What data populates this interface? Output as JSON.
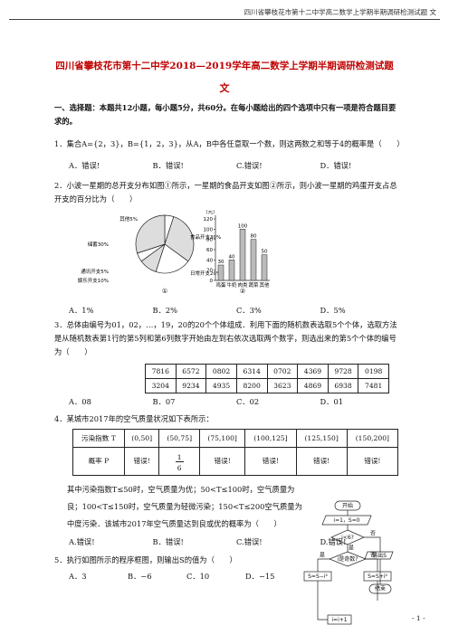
{
  "header": "四川省攀枝花市第十二中学高二数学上学期半期调研检测试题 文",
  "title": "四川省攀枝花市第十二中学2018—2019学年高二数学上学期半期调研检测试题",
  "subtitle": "文",
  "section": "一、选择题：本题共12小题，每小题5分，共60分。在每小题给出的四个选项中只有一项是符合题目要求的。",
  "q1": {
    "text": "1．集合A={2，3}，B={1，2，3}，从A，B中各任意取一个数，则这两数之和等于4的概率是（　　）",
    "options": [
      "A．错误!",
      "B．错误!",
      "C.错误!",
      "D．错误!"
    ]
  },
  "q2": {
    "text": "2．小波一星期的总开支分布如图①所示，一星期的食品开支如图②所示，则小波一星期的鸡蛋开支占总开支的百分比为（　　）",
    "options": [
      "A．1%",
      "B．2%",
      "C．3%",
      "D．5%"
    ],
    "pie": {
      "caption": "①",
      "slices": [
        {
          "label": "其他5%",
          "value": 5
        },
        {
          "label": "食品开支30%",
          "value": 30
        },
        {
          "label": "日常开支20%",
          "value": 20
        },
        {
          "label": "娱乐开支10%",
          "value": 10
        },
        {
          "label": "通讯开支5%",
          "value": 5
        },
        {
          "label": "储蓄30%",
          "value": 30
        }
      ]
    },
    "bar": {
      "caption": "②",
      "unit": "（元）",
      "categories": [
        "鸡蛋",
        "牛奶",
        "肉类",
        "蔬菜",
        "其他"
      ],
      "values": [
        30,
        40,
        100,
        80,
        50
      ],
      "ylim": [
        0,
        120
      ],
      "yticks": [
        0,
        20,
        40,
        60,
        80,
        100,
        120
      ]
    }
  },
  "q3": {
    "text": "3．总体由编号为01，02，…，19，20的20个个体组成．利用下面的随机数表选取5个个体，选取方法是从随机数表第1行的第5列和第6列数字开始由左到右依次选取两个数字，则选出来的第5个个体的编号为（　　）",
    "table": [
      [
        "7816",
        "6572",
        "0802",
        "6314",
        "0702",
        "4369",
        "9728",
        "0198"
      ],
      [
        "3204",
        "9234",
        "4935",
        "8200",
        "3623",
        "4869",
        "6938",
        "7481"
      ]
    ],
    "options": [
      "A．08",
      "B．07",
      "C．02",
      "D．01"
    ]
  },
  "q4": {
    "text": "4．某城市2017年的空气质量状况如下表所示：",
    "table": [
      [
        "污染指数 T",
        "(0,50]",
        "(50,75]",
        "(75,100]",
        "(100,125]",
        "(125,150]",
        "(150,200]"
      ],
      [
        "概率 P",
        "错误!",
        {
          "numerator": "1",
          "denominator": "6"
        },
        "错误!",
        "错误!",
        "错误!",
        "错误!"
      ]
    ],
    "text2": "其中污染指数T≤50时，空气质量为优；50<T≤100时，空气质量为良；100<T≤150时，空气质量为轻微污染；150<T≤200空气质量为中度污染．该城市2017年空气质量达到良或优的概率为（　　）",
    "options": [
      "A.错误!",
      "B．错误!",
      "C.错误!",
      "D.错误!"
    ]
  },
  "q5": {
    "text": "5．执行如图所示的程序框图，则输出S的值为（　　）",
    "options": [
      "A．3",
      "B．−6",
      "C．10",
      "D．−15"
    ],
    "flow": {
      "start": "开始",
      "init": "i=1，S=0",
      "cond1": "i<6?",
      "cond2": "i是奇数?",
      "yes1": "是",
      "no1": "否",
      "yes2": "是",
      "no2": "否",
      "minus": "S=S−i²",
      "plus": "S=S+i²",
      "out": "输出S",
      "end": "结束",
      "inc": "i=i+1"
    }
  },
  "footer": "- 1 -"
}
